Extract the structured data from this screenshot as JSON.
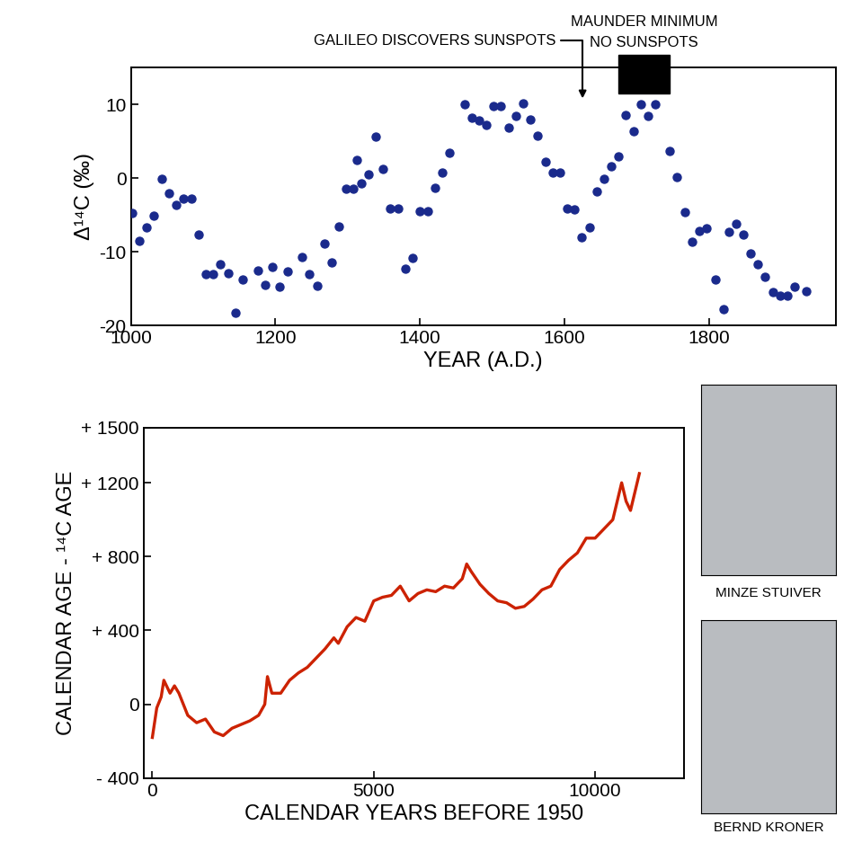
{
  "chart_data": [
    {
      "type": "scatter",
      "x_label": "YEAR (A.D.)",
      "y_label": "Δ¹⁴C (‰)",
      "x": [
        1002,
        1012,
        1022,
        1032,
        1043,
        1053,
        1063,
        1073,
        1084,
        1094,
        1104,
        1114,
        1124,
        1135,
        1145,
        1155,
        1176,
        1186,
        1196,
        1206,
        1217,
        1237,
        1247,
        1258,
        1268,
        1278,
        1288,
        1298,
        1308,
        1313,
        1319,
        1329,
        1339,
        1349,
        1359,
        1370,
        1380,
        1390,
        1400,
        1411,
        1421,
        1431,
        1441,
        1462,
        1472,
        1482,
        1492,
        1502,
        1512,
        1523,
        1533,
        1543,
        1553,
        1563,
        1574,
        1584,
        1594,
        1604,
        1614,
        1624,
        1635,
        1645,
        1655,
        1665,
        1675,
        1685,
        1696,
        1706,
        1716,
        1726,
        1745,
        1755,
        1766,
        1776,
        1786,
        1796,
        1809,
        1820,
        1827,
        1837,
        1847,
        1857,
        1867,
        1877,
        1888,
        1898,
        1908,
        1918,
        1934
      ],
      "values": [
        -4.8,
        -8.5,
        -6.7,
        -5.1,
        -0.1,
        -2.1,
        -3.7,
        -2.8,
        -2.8,
        -7.7,
        -13,
        -13,
        -11.7,
        -12.9,
        -18.3,
        -13.8,
        -12.6,
        -14.5,
        -12.1,
        -14.8,
        -12.7,
        -10.7,
        -13,
        -14.6,
        -8.9,
        -11.5,
        -6.6,
        -1.5,
        -1.5,
        2.4,
        -0.7,
        0.5,
        5.6,
        1.2,
        -4.1,
        -4.1,
        -12.3,
        -10.9,
        -4.5,
        -4.5,
        -1.3,
        0.7,
        3.4,
        10,
        8.2,
        7.8,
        7.2,
        9.8,
        9.8,
        6.8,
        8.4,
        10.1,
        7.9,
        5.7,
        2.2,
        0.7,
        0.7,
        -4.1,
        -4.3,
        -8,
        -6.7,
        -1.8,
        -0.1,
        1.6,
        2.9,
        8.5,
        6.3,
        10,
        8.4,
        10,
        3.7,
        0.1,
        -4.6,
        -8.7,
        -7.2,
        -6.8,
        -13.8,
        -17.8,
        -7.3,
        -6.2,
        -7.7,
        -10.2,
        -11.7,
        -13.4,
        -15.5,
        -16,
        -16,
        -14.8,
        -15.4
      ],
      "color": "#1a2a8c",
      "marker": "o",
      "xlim": [
        1000,
        1975
      ],
      "xticks": [
        1000,
        1200,
        1400,
        1600,
        1800
      ],
      "ylim": [
        -20,
        15
      ],
      "yticks": [
        -20,
        -10,
        0,
        10
      ],
      "grid": false,
      "annotations": [
        {
          "text": "GALILEO DISCOVERS SUNSPOTS",
          "x": 1625
        },
        {
          "text": "MAUNDER MINIMUM\nNO SUNSPOTS",
          "start": 1675,
          "end": 1745
        }
      ]
    },
    {
      "type": "line",
      "x_label": "CALENDAR YEARS BEFORE 1950",
      "y_label": "CALENDAR AGE - ¹⁴C AGE",
      "x": [
        0,
        100,
        200,
        260,
        400,
        500,
        600,
        800,
        1000,
        1200,
        1400,
        1600,
        1800,
        2000,
        2200,
        2400,
        2540,
        2600,
        2700,
        2900,
        3100,
        3300,
        3500,
        3700,
        3900,
        4100,
        4200,
        4400,
        4600,
        4800,
        5000,
        5200,
        5400,
        5600,
        5800,
        6000,
        6200,
        6400,
        6600,
        6800,
        7000,
        7100,
        7200,
        7400,
        7600,
        7800,
        8000,
        8200,
        8400,
        8600,
        8800,
        9000,
        9200,
        9400,
        9600,
        9800,
        10000,
        10200,
        10400,
        10500,
        10600,
        10700,
        10800,
        10900,
        11000
      ],
      "values": [
        -180,
        -20,
        40,
        130,
        60,
        100,
        60,
        -60,
        -100,
        -80,
        -150,
        -170,
        -130,
        -110,
        -90,
        -60,
        0,
        150,
        60,
        60,
        130,
        170,
        200,
        250,
        300,
        360,
        330,
        420,
        470,
        450,
        560,
        580,
        590,
        640,
        560,
        600,
        620,
        610,
        640,
        630,
        680,
        760,
        720,
        650,
        600,
        560,
        550,
        520,
        530,
        570,
        620,
        640,
        730,
        780,
        820,
        900,
        900,
        950,
        1000,
        1100,
        1200,
        1100,
        1050,
        1150,
        1250
      ],
      "color": "#cc2200",
      "line_style": "solid",
      "xlim": [
        -200,
        12000
      ],
      "xticks": [
        0,
        5000,
        10000
      ],
      "ylim": [
        -400,
        1500
      ],
      "yticks": [
        {
          "value": -400,
          "label": "- 400"
        },
        0,
        {
          "value": 400,
          "label": "+ 400"
        },
        {
          "value": 800,
          "label": "+ 800"
        },
        {
          "value": 1200,
          "label": "+ 1200"
        },
        {
          "value": 1500,
          "label": "+ 1500"
        }
      ],
      "grid": false
    }
  ],
  "photos": [
    {
      "caption": "MINZE STUIVER"
    },
    {
      "caption": "BERND KRONER"
    }
  ]
}
